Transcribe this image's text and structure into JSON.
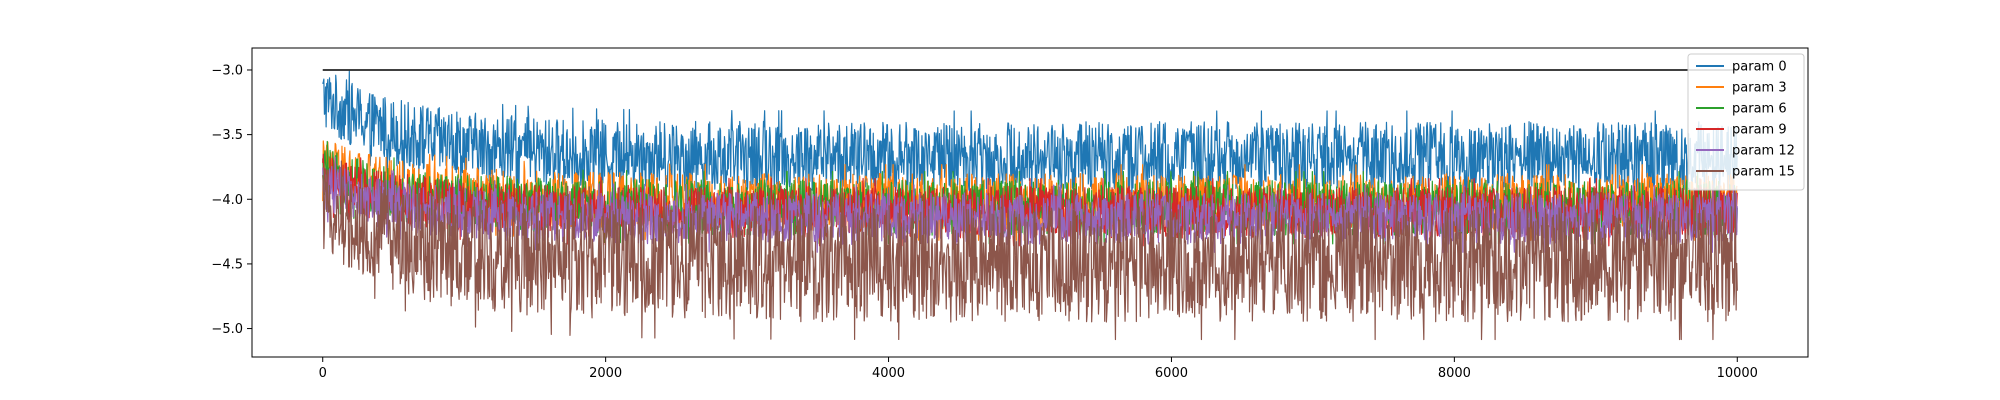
{
  "chart_data": {
    "type": "line",
    "title": "",
    "xlabel": "",
    "ylabel": "",
    "xlim": [
      -500,
      10500
    ],
    "ylim": [
      -5.22,
      -2.83
    ],
    "x_ticks": [
      0,
      2000,
      4000,
      6000,
      8000,
      10000
    ],
    "x_tick_labels": [
      "0",
      "2000",
      "4000",
      "6000",
      "8000",
      "10000"
    ],
    "y_ticks": [
      -3.0,
      -3.5,
      -4.0,
      -4.5,
      -5.0
    ],
    "y_tick_labels": [
      "−3.0",
      "−3.5",
      "−4.0",
      "−4.5",
      "−5.0"
    ],
    "grid": false,
    "legend_position": "top-right",
    "n_points": 10000,
    "reference_line": {
      "y": -3.0,
      "x": [
        0,
        10000
      ],
      "color": "#000000"
    },
    "series": [
      {
        "name": "param 0",
        "color": "#1f77b4",
        "envelope_start": {
          "x": 0,
          "upper": -2.97,
          "lower": -3.45
        },
        "envelope_end": {
          "x": 10000,
          "upper": -3.4,
          "lower": -3.95
        },
        "typical_band": [
          -3.25,
          -3.85
        ],
        "extreme_max": -3.05
      },
      {
        "name": "param 3",
        "color": "#ff7f0e",
        "envelope_start": {
          "x": 0,
          "upper": -3.52,
          "lower": -3.95
        },
        "envelope_end": {
          "x": 10000,
          "upper": -3.8,
          "lower": -4.25
        },
        "typical_band": [
          -3.75,
          -4.15
        ],
        "extreme_max": -3.65
      },
      {
        "name": "param 6",
        "color": "#2ca02c",
        "envelope_start": {
          "x": 0,
          "upper": -3.6,
          "lower": -4.0
        },
        "envelope_end": {
          "x": 10000,
          "upper": -3.85,
          "lower": -4.28
        },
        "typical_band": [
          -3.85,
          -4.2
        ],
        "extreme_max": -3.7
      },
      {
        "name": "param 9",
        "color": "#d62728",
        "envelope_start": {
          "x": 0,
          "upper": -3.65,
          "lower": -4.05
        },
        "envelope_end": {
          "x": 10000,
          "upper": -3.9,
          "lower": -4.3
        },
        "typical_band": [
          -3.92,
          -4.25
        ],
        "extreme_max": -3.78
      },
      {
        "name": "param 12",
        "color": "#9467bd",
        "envelope_start": {
          "x": 0,
          "upper": -3.7,
          "lower": -4.1
        },
        "envelope_end": {
          "x": 10000,
          "upper": -3.95,
          "lower": -4.35
        },
        "typical_band": [
          -3.98,
          -4.3
        ],
        "extreme_max": -3.85
      },
      {
        "name": "param 15",
        "color": "#8c564b",
        "envelope_start": {
          "x": 0,
          "upper": -3.75,
          "lower": -4.4
        },
        "envelope_end": {
          "x": 10000,
          "upper": -4.05,
          "lower": -4.95
        },
        "typical_band": [
          -4.05,
          -4.9
        ],
        "extreme_min": -5.1
      }
    ]
  }
}
